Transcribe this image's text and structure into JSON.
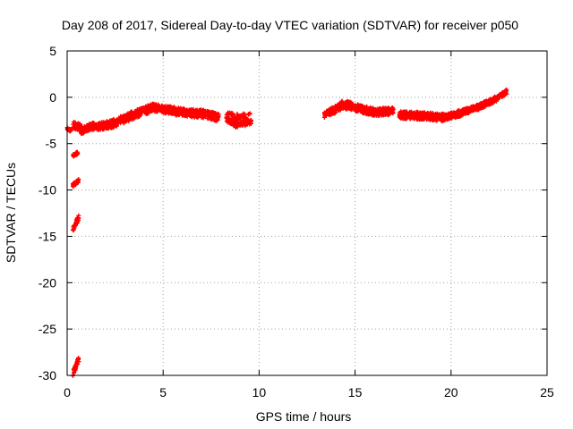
{
  "chart_data": {
    "type": "scatter",
    "title": "Day 208 of 2017, Sidereal Day-to-day VTEC variation (SDTVAR) for receiver p050",
    "xlabel": "GPS time / hours",
    "ylabel": "SDTVAR / TECUs",
    "xlim": [
      0,
      25
    ],
    "ylim": [
      -30,
      5
    ],
    "xticks": [
      0,
      5,
      10,
      15,
      20,
      25
    ],
    "yticks": [
      -30,
      -25,
      -20,
      -15,
      -10,
      -5,
      0,
      5
    ],
    "xtick_labels": [
      "0",
      "5",
      "10",
      "15",
      "20",
      "25"
    ],
    "ytick_labels": [
      "-30",
      "-25",
      "-20",
      "-15",
      "-10",
      "-5",
      "0",
      "5"
    ],
    "grid": true,
    "marker_color": "#ff0000",
    "series": [
      {
        "name": "SDTVAR",
        "segments": [
          {
            "x_start": 0.0,
            "x_end": 0.2,
            "y_start": -3.4,
            "y_end": -3.6,
            "spread": 0.3
          },
          {
            "x_start": 0.3,
            "x_end": 0.55,
            "y_start": -6.3,
            "y_end": -6.0,
            "spread": 0.3
          },
          {
            "x_start": 0.3,
            "x_end": 0.6,
            "y_start": -9.5,
            "y_end": -9.0,
            "spread": 0.35
          },
          {
            "x_start": 0.3,
            "x_end": 0.6,
            "y_start": -14.2,
            "y_end": -13.0,
            "spread": 0.5
          },
          {
            "x_start": 0.3,
            "x_end": 0.6,
            "y_start": -29.8,
            "y_end": -28.3,
            "spread": 0.5
          },
          {
            "x_start": 0.3,
            "x_end": 0.7,
            "y_start": -3.0,
            "y_end": -3.2,
            "spread": 0.8
          },
          {
            "x_start": 0.7,
            "x_end": 1.5,
            "y_start": -3.6,
            "y_end": -3.0,
            "spread": 0.8
          },
          {
            "x_start": 1.5,
            "x_end": 2.3,
            "y_start": -3.2,
            "y_end": -2.9,
            "spread": 0.8
          },
          {
            "x_start": 2.3,
            "x_end": 3.0,
            "y_start": -2.9,
            "y_end": -2.3,
            "spread": 0.9
          },
          {
            "x_start": 3.0,
            "x_end": 3.8,
            "y_start": -2.3,
            "y_end": -1.6,
            "spread": 0.9
          },
          {
            "x_start": 3.8,
            "x_end": 4.5,
            "y_start": -1.6,
            "y_end": -1.1,
            "spread": 0.9
          },
          {
            "x_start": 4.5,
            "x_end": 5.4,
            "y_start": -1.1,
            "y_end": -1.4,
            "spread": 0.8
          },
          {
            "x_start": 5.4,
            "x_end": 6.4,
            "y_start": -1.4,
            "y_end": -1.8,
            "spread": 0.9
          },
          {
            "x_start": 6.4,
            "x_end": 7.2,
            "y_start": -1.7,
            "y_end": -1.8,
            "spread": 0.9
          },
          {
            "x_start": 7.2,
            "x_end": 7.9,
            "y_start": -1.8,
            "y_end": -2.2,
            "spread": 0.9
          },
          {
            "x_start": 8.3,
            "x_end": 8.8,
            "y_start": -2.0,
            "y_end": -2.6,
            "spread": 1.4
          },
          {
            "x_start": 8.8,
            "x_end": 9.6,
            "y_start": -2.5,
            "y_end": -2.4,
            "spread": 1.4
          },
          {
            "x_start": 13.4,
            "x_end": 14.3,
            "y_start": -2.0,
            "y_end": -0.9,
            "spread": 0.8
          },
          {
            "x_start": 14.3,
            "x_end": 15.0,
            "y_start": -0.8,
            "y_end": -1.0,
            "spread": 0.9
          },
          {
            "x_start": 15.0,
            "x_end": 16.0,
            "y_start": -1.1,
            "y_end": -1.6,
            "spread": 0.8
          },
          {
            "x_start": 16.0,
            "x_end": 17.0,
            "y_start": -1.6,
            "y_end": -1.5,
            "spread": 0.8
          },
          {
            "x_start": 17.3,
            "x_end": 18.5,
            "y_start": -1.9,
            "y_end": -2.0,
            "spread": 0.8
          },
          {
            "x_start": 18.5,
            "x_end": 19.7,
            "y_start": -2.0,
            "y_end": -2.2,
            "spread": 0.8
          },
          {
            "x_start": 19.7,
            "x_end": 20.5,
            "y_start": -2.2,
            "y_end": -1.7,
            "spread": 0.7
          },
          {
            "x_start": 20.5,
            "x_end": 21.5,
            "y_start": -1.7,
            "y_end": -1.0,
            "spread": 0.6
          },
          {
            "x_start": 21.5,
            "x_end": 22.4,
            "y_start": -1.0,
            "y_end": -0.1,
            "spread": 0.6
          },
          {
            "x_start": 22.4,
            "x_end": 22.9,
            "y_start": -0.1,
            "y_end": 0.6,
            "spread": 0.5
          }
        ]
      }
    ]
  }
}
